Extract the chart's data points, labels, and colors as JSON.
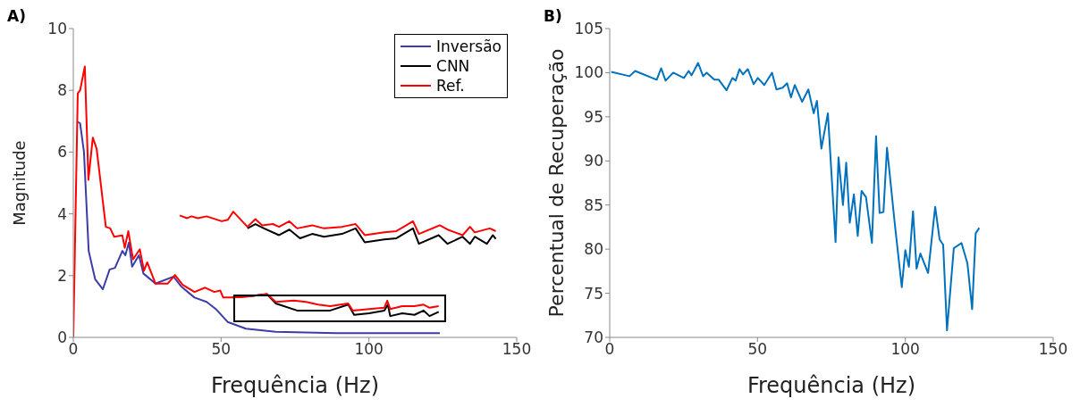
{
  "chart_data": [
    {
      "type": "line",
      "title": "A)",
      "xlabel": "Frequência (Hz)",
      "ylabel": "Magnitude",
      "xlim": [
        0,
        150
      ],
      "ylim": [
        0,
        10
      ],
      "xticks": [
        0,
        50,
        100,
        150
      ],
      "yticks": [
        0,
        2,
        4,
        6,
        8,
        10
      ],
      "legend": "top right",
      "series": [
        {
          "name": "Inversão",
          "color": "#3c3ca8",
          "x": [
            1.5,
            2.3,
            3.6,
            5.2,
            7.4,
            10,
            12.3,
            14.1,
            16.6,
            17.6,
            18.8,
            19.9,
            22.2,
            23.7,
            27.8,
            33.9,
            36.5,
            41,
            45.1,
            48.2,
            52.2,
            58.4,
            68.5,
            88.9,
            124
          ],
          "values": [
            6.98,
            6.93,
            6.01,
            2.8,
            1.88,
            1.56,
            2.2,
            2.25,
            2.8,
            2.66,
            3.07,
            2.29,
            2.66,
            2.07,
            1.74,
            1.97,
            1.65,
            1.29,
            1.15,
            0.92,
            0.5,
            0.28,
            0.18,
            0.14,
            0.14
          ]
        },
        {
          "name": "CNN",
          "color": "#000000",
          "x": [
            53.8,
            59.4,
            65.5,
            68.5,
            75.7,
            80.8,
            86.9,
            93,
            95,
            100.1,
            105.2,
            106.4,
            107.2,
            111.3,
            115.4,
            118.5,
            120.5,
            123.6
          ],
          "values": [
            1.29,
            1.33,
            1.4,
            1.1,
            0.87,
            0.87,
            0.87,
            1.06,
            0.73,
            0.78,
            0.87,
            1.06,
            0.69,
            0.78,
            0.73,
            0.87,
            0.69,
            0.83
          ]
        },
        {
          "name": "Ref.",
          "color": "#ff0000",
          "x": [
            0,
            1.5,
            2.3,
            3.9,
            5.1,
            6.6,
            7.9,
            11,
            12.5,
            13.8,
            16.6,
            17.4,
            18.6,
            20.2,
            22.5,
            23.9,
            25,
            27.8,
            31.9,
            34.4,
            37,
            41,
            44.6,
            47.7,
            49.7,
            50.7,
            54.3,
            59.4,
            65.5,
            68.5,
            74.6,
            78.7,
            82.8,
            86.9,
            93,
            94.5,
            100.1,
            105.2,
            106.2,
            107.2,
            111.3,
            115.4,
            118.5,
            120.5,
            123.6
          ],
          "values": [
            0,
            7.9,
            8,
            8.77,
            5.1,
            6.47,
            6.1,
            3.58,
            3.53,
            3.26,
            3.3,
            2.9,
            3.44,
            2.53,
            2.85,
            2.16,
            2.43,
            1.74,
            1.74,
            2.02,
            1.7,
            1.47,
            1.61,
            1.47,
            1.52,
            1.29,
            1.29,
            1.33,
            1.4,
            1.15,
            1.19,
            1.15,
            1.06,
            1.01,
            1.1,
            0.87,
            0.92,
            0.96,
            1.19,
            0.92,
            1.01,
            1.01,
            1.06,
            0.96,
            1.01
          ]
        },
        {
          "color": "#000000",
          "x": [
            58.9,
            61.6,
            64.5,
            69.6,
            73.1,
            76.7,
            80.8,
            84.8,
            90.9,
            95.5,
            98.6,
            105.2,
            109.3,
            114.9,
            116.9,
            123.6,
            126.6,
            131.7,
            134.2,
            135.8,
            139.9,
            141.9,
            142.9
          ],
          "values": [
            3.53,
            3.67,
            3.53,
            3.31,
            3.49,
            3.21,
            3.35,
            3.26,
            3.35,
            3.53,
            3.08,
            3.17,
            3.21,
            3.53,
            3.03,
            3.31,
            3.03,
            3.26,
            3.03,
            3.26,
            3.03,
            3.31,
            3.19
          ]
        },
        {
          "color": "#ff0000",
          "x": [
            36,
            38.5,
            40,
            42.1,
            45.1,
            50.2,
            52.3,
            54.1,
            58.9,
            61.6,
            63.9,
            67.5,
            69.6,
            73.1,
            75.7,
            80.8,
            84.8,
            90.9,
            95.5,
            98.6,
            105.2,
            109.3,
            114.9,
            116.9,
            124,
            126.6,
            131.7,
            134.2,
            135.8,
            140.9,
            142.9
          ],
          "values": [
            3.95,
            3.86,
            3.92,
            3.86,
            3.92,
            3.76,
            3.81,
            4.07,
            3.58,
            3.83,
            3.63,
            3.67,
            3.58,
            3.76,
            3.53,
            3.63,
            3.53,
            3.58,
            3.67,
            3.31,
            3.4,
            3.44,
            3.76,
            3.35,
            3.63,
            3.49,
            3.31,
            3.58,
            3.4,
            3.53,
            3.44
          ]
        }
      ]
    },
    {
      "type": "line",
      "title": "B)",
      "xlabel": "Frequência (Hz)",
      "ylabel": "Percentual de Recuperação",
      "xlim": [
        0,
        150
      ],
      "ylim": [
        70,
        105
      ],
      "xticks": [
        0,
        50,
        100,
        150
      ],
      "yticks": [
        70,
        75,
        80,
        85,
        90,
        95,
        100,
        105
      ],
      "series": [
        {
          "color": "#0072bd",
          "x": [
            0.5,
            6.7,
            8.6,
            15.9,
            17.4,
            18.9,
            21.5,
            25.1,
            26.7,
            27.7,
            29.9,
            31.6,
            32.8,
            35.4,
            36.9,
            39.5,
            41.5,
            42.6,
            43.9,
            45.1,
            46.7,
            48.7,
            50.1,
            52.3,
            54.9,
            56.4,
            58.5,
            60,
            61.3,
            62.6,
            65.1,
            67.2,
            69,
            70.1,
            71.6,
            73.8,
            76.4,
            77.4,
            78.9,
            80,
            81.2,
            82.6,
            83.9,
            85.2,
            86.7,
            88.7,
            90.1,
            91.3,
            92.6,
            93.8,
            96.4,
            98.8,
            100,
            101.2,
            102.6,
            103.8,
            105.1,
            107.7,
            110.1,
            111.6,
            112.8,
            114.1,
            116.4,
            119,
            121,
            122.6,
            123.8,
            125
          ],
          "values": [
            100.1,
            99.6,
            100.2,
            99.2,
            100.5,
            99.1,
            100,
            99.4,
            100.2,
            99.7,
            101.1,
            99.6,
            100,
            99.2,
            99.2,
            98,
            99.4,
            99.1,
            100.4,
            99.8,
            100.4,
            98.7,
            99.4,
            98.6,
            100,
            98.1,
            98.3,
            98.8,
            97.2,
            98.6,
            96.7,
            98.1,
            95.4,
            96.8,
            91.4,
            95.4,
            80.8,
            90.4,
            85,
            89.8,
            83,
            86.2,
            81.5,
            86.6,
            85.9,
            80.7,
            92.8,
            84.1,
            84.2,
            91.5,
            83,
            75.7,
            79.9,
            78,
            84.3,
            77.8,
            79.5,
            77.3,
            84.8,
            81.1,
            80.5,
            70.8,
            80.1,
            80.7,
            78.4,
            73.2,
            81.8,
            82.4
          ]
        }
      ]
    }
  ]
}
